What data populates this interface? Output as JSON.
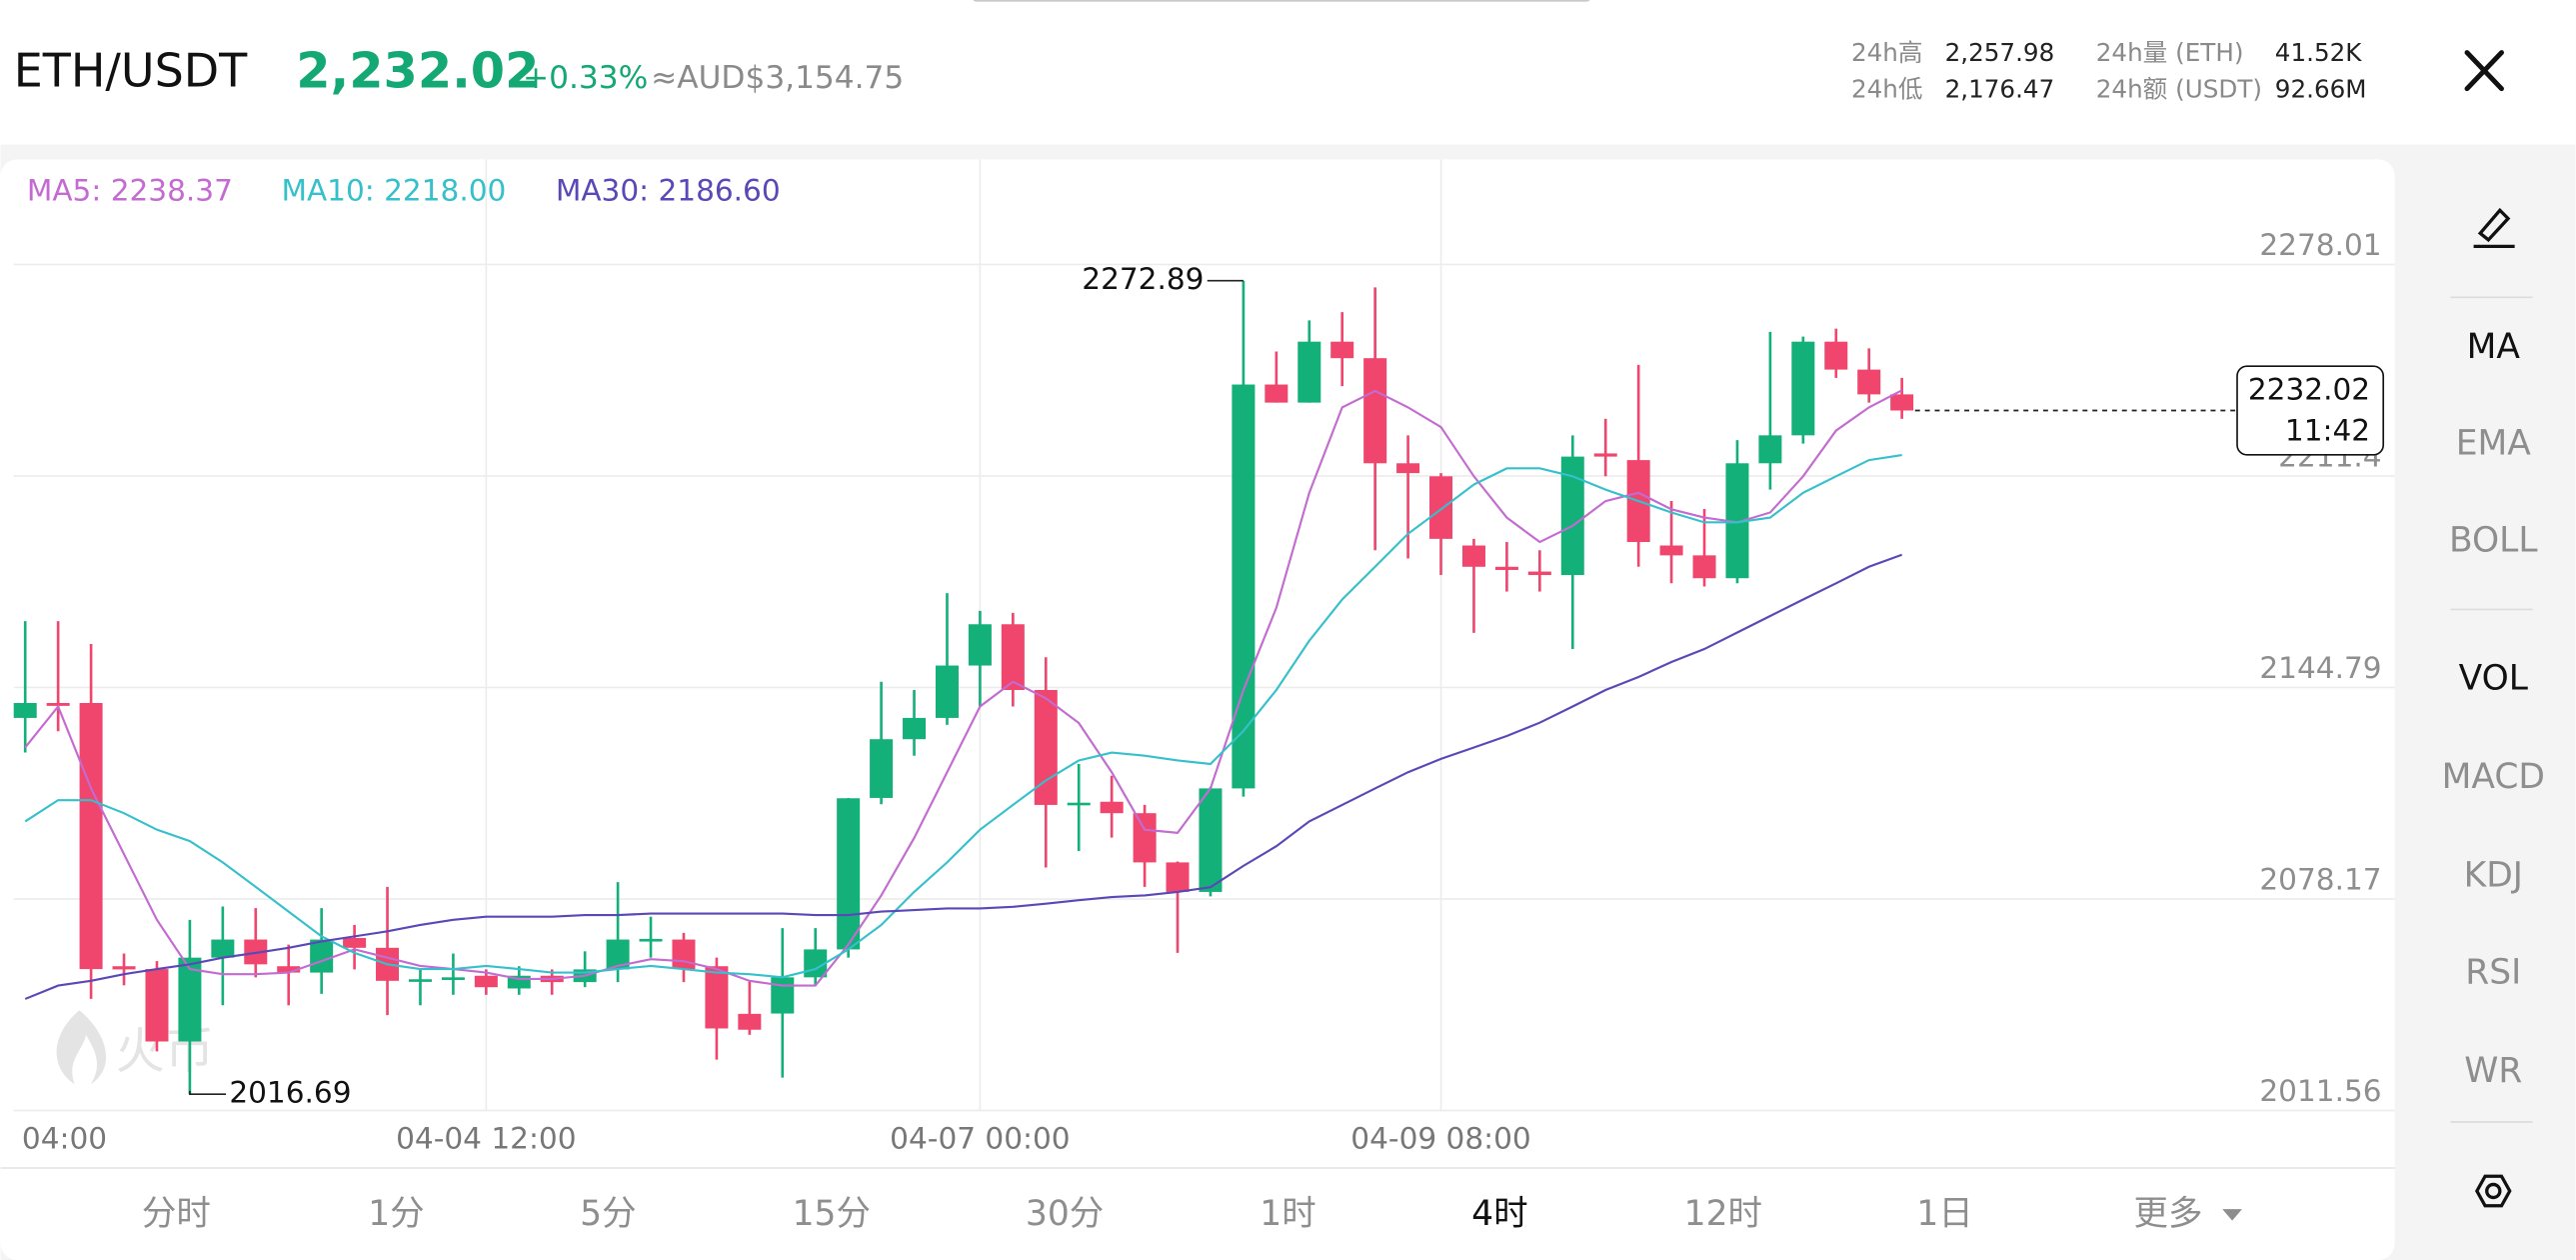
{
  "header": {
    "pair": "ETH/USDT",
    "price": "2,232.02",
    "change": "+0.33%",
    "fiat": "≈AUD$3,154.75",
    "stats": [
      {
        "label": "24h高",
        "value": "2,257.98"
      },
      {
        "label": "24h低",
        "value": "2,176.47"
      },
      {
        "label": "24h量 (ETH)",
        "value": "41.52K"
      },
      {
        "label": "24h额 (USDT)",
        "value": "92.66M"
      }
    ]
  },
  "chart_data": {
    "type": "candlestick",
    "categories": [
      "04:00",
      null,
      null,
      null,
      null,
      null,
      null,
      null,
      null,
      null,
      null,
      null,
      null,
      null,
      "04-04 12:00",
      null,
      null,
      null,
      null,
      null,
      null,
      null,
      null,
      null,
      null,
      null,
      null,
      null,
      null,
      "04-07 00:00",
      null,
      null,
      null,
      null,
      null,
      null,
      null,
      null,
      null,
      null,
      null,
      null,
      null,
      "04-09 08:00",
      null,
      null,
      null,
      null,
      null,
      null,
      null,
      null,
      null,
      null,
      null,
      null,
      null,
      null
    ],
    "open": [
      2135.2,
      2139.9,
      2139.9,
      2057,
      2056.1,
      2033.3,
      2059.7,
      2065.4,
      2057,
      2055,
      2065.9,
      2062.8,
      2052.4,
      2053,
      2054,
      2050,
      2054,
      2052,
      2056,
      2065,
      2065.4,
      2057,
      2042,
      2042.1,
      2053.5,
      2062.3,
      2110,
      2128.5,
      2135.2,
      2151.7,
      2164.7,
      2144,
      2107.8,
      2108.8,
      2105.2,
      2089.7,
      2080.4,
      2113,
      2240.2,
      2234.5,
      2253.7,
      2248.5,
      2215.4,
      2211.3,
      2189.5,
      2182.8,
      2181.3,
      2180.2,
      2218.5,
      2216.4,
      2189.5,
      2186.4,
      2179.2,
      2215.4,
      2224.2,
      2253.7,
      2244.9,
      2237.1
    ],
    "high": [
      2165.7,
      2165.7,
      2158.5,
      2061,
      2058.6,
      2071.6,
      2075.8,
      2075.3,
      2063.8,
      2075.3,
      2070,
      2082,
      2056,
      2061,
      2056,
      2057,
      2056,
      2061.7,
      2083.5,
      2072.6,
      2067.5,
      2059.7,
      2052.4,
      2069,
      2069,
      2110,
      2146.6,
      2144,
      2174.5,
      2168.9,
      2168.3,
      2154.3,
      2120.7,
      2117,
      2107.8,
      2090,
      2113.5,
      2272.89,
      2250.6,
      2260.4,
      2263,
      2270.8,
      2224.2,
      2212.3,
      2191.6,
      2190.6,
      2188,
      2224.2,
      2229.4,
      2246.4,
      2203.5,
      2201,
      2222.7,
      2256.8,
      2255.3,
      2257.8,
      2251.6,
      2242.3
    ],
    "low": [
      2124.3,
      2131,
      2046.7,
      2051,
      2030.2,
      2016.69,
      2044.7,
      2053.5,
      2044.7,
      2048.3,
      2056,
      2041.6,
      2044.7,
      2048,
      2048,
      2048,
      2048,
      2050.4,
      2052,
      2059.7,
      2052,
      2027.6,
      2035.4,
      2021.9,
      2050.9,
      2059.7,
      2108,
      2123.3,
      2133,
      2138.8,
      2138.8,
      2088.1,
      2093.3,
      2097.5,
      2082,
      2061.2,
      2079,
      2110.4,
      2234.5,
      2234.5,
      2239.7,
      2188,
      2185.4,
      2180.2,
      2162,
      2175,
      2175,
      2156.9,
      2211.3,
      2182.8,
      2177.6,
      2176.6,
      2177.6,
      2207.1,
      2221.6,
      2242.3,
      2234.5,
      2229.4
    ],
    "close": [
      2139.9,
      2139.0,
      2056.1,
      2056,
      2033.3,
      2059.7,
      2065.4,
      2057.6,
      2055,
      2065.4,
      2062.8,
      2052.4,
      2052.9,
      2053.5,
      2050.4,
      2054,
      2052,
      2056,
      2065.4,
      2065.6,
      2056.1,
      2037.4,
      2037,
      2053.5,
      2062.3,
      2109.9,
      2128.5,
      2135.2,
      2151.7,
      2164.7,
      2144,
      2107.8,
      2108.5,
      2105.2,
      2089.7,
      2080.4,
      2113,
      2240.2,
      2234.5,
      2253.7,
      2248.5,
      2215.4,
      2212.3,
      2191.6,
      2182.8,
      2181.8,
      2180.2,
      2217.5,
      2217.5,
      2190.6,
      2186.4,
      2179.2,
      2215.4,
      2224.2,
      2253.7,
      2244.9,
      2237.1,
      2232.02
    ],
    "up_color": "#14b07a",
    "down_color": "#f0456d",
    "series": [
      {
        "name": "MA5: 2238.37",
        "color": "#c36bd0",
        "values": [
          2125.9,
          2138.8,
          2113,
          2092.3,
          2071.6,
          2056.1,
          2054.5,
          2054.5,
          2055,
          2058.6,
          2062.3,
          2059.7,
          2057.1,
          2056.1,
          2055,
          2053,
          2053,
          2054,
          2057.1,
          2059.2,
          2058.6,
          2056.1,
          2052.4,
          2050.9,
          2050.9,
          2063.8,
          2079.3,
          2097.4,
          2118.1,
          2138.8,
          2146.6,
          2141.4,
          2133.6,
          2118.1,
          2100,
          2099,
          2113,
          2144,
          2169.9,
          2206.1,
          2233,
          2238.2,
          2233,
          2226.8,
          2211.3,
          2198.3,
          2190.6,
          2195.7,
          2203.5,
          2206.1,
          2200.9,
          2198.3,
          2196.8,
          2199.9,
          2211.3,
          2225.7,
          2233,
          2238.37
        ]
      },
      {
        "name": "MA10: 2218.00",
        "color": "#35c0cc",
        "values": [
          2102.6,
          2109.3,
          2109.3,
          2105.2,
          2100,
          2096.4,
          2089.7,
          2082,
          2074.2,
          2066.4,
          2061.2,
          2057.6,
          2056.1,
          2056.1,
          2057.1,
          2056.1,
          2055,
          2055,
          2056.1,
          2057.1,
          2056.1,
          2055,
          2054.5,
          2053.5,
          2056.1,
          2062.3,
          2070,
          2080.4,
          2089.7,
          2100,
          2107.8,
          2115.5,
          2121.8,
          2124.3,
          2123.3,
          2121.8,
          2120.7,
          2131.1,
          2144,
          2159.5,
          2172.5,
          2182.8,
          2193.2,
          2200.9,
          2208.7,
          2213.8,
          2213.8,
          2211.3,
          2207.1,
          2203.5,
          2199.9,
          2196.8,
          2196.8,
          2198.3,
          2206.1,
          2211.3,
          2216.4,
          2218.0
        ]
      },
      {
        "name": "MA30: 2186.60",
        "color": "#5b48b8",
        "values": [
          2046.7,
          2050.9,
          2052.4,
          2054.5,
          2056.1,
          2057.6,
          2059.7,
          2061.2,
          2062.8,
          2064.8,
          2066.4,
          2068,
          2070,
          2071.6,
          2072.6,
          2072.6,
          2072.6,
          2073.1,
          2073.1,
          2073.6,
          2073.6,
          2073.6,
          2073.6,
          2073.6,
          2073.1,
          2073.1,
          2074.2,
          2074.7,
          2075.2,
          2075.2,
          2075.7,
          2076.7,
          2077.8,
          2078.8,
          2079.3,
          2080.4,
          2081.9,
          2088.6,
          2094.8,
          2102.6,
          2107.8,
          2113,
          2118.1,
          2122.3,
          2125.9,
          2129.5,
          2133.7,
          2138.8,
          2144,
          2148.1,
          2152.8,
          2156.9,
          2162.1,
          2167.3,
          2172.5,
          2177.6,
          2182.8,
          2186.6
        ]
      }
    ],
    "ylim": [
      2011.56,
      2311.12
    ],
    "yticks": [
      2011.56,
      2078.17,
      2144.79,
      2211.4,
      2278.01
    ],
    "grid": true,
    "countdown": "11:42",
    "watermark": "火币"
  },
  "indicators": [
    "MA",
    "EMA",
    "BOLL",
    "VOL",
    "MACD",
    "KDJ",
    "RSI",
    "WR"
  ],
  "intervals": [
    "分时",
    "1分",
    "5分",
    "15分",
    "30分",
    "1时",
    "4时",
    "12时",
    "1日",
    "更多"
  ]
}
